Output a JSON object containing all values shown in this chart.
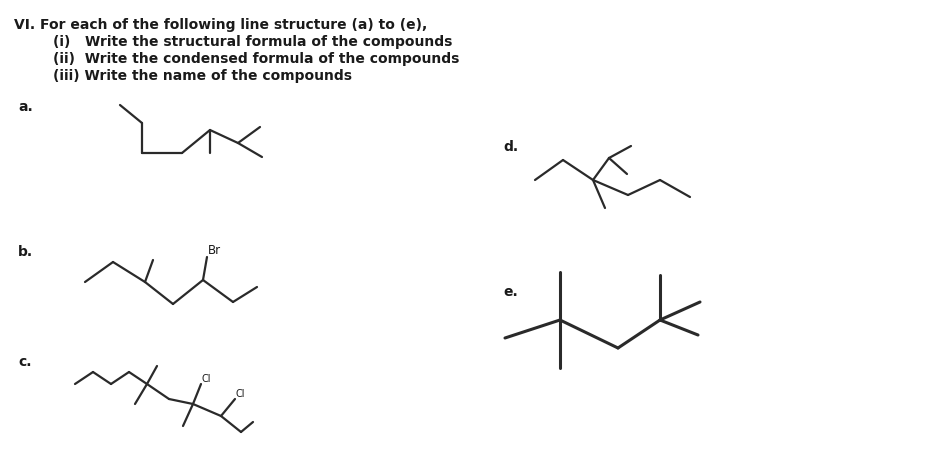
{
  "title_text": "VI. For each of the following line structure (a) to (e),",
  "line1": "        (i)   Write the structural formula of the compounds",
  "line2": "        (ii)  Write the condensed formula of the compounds",
  "line3": "        (iii) Write the name of the compounds",
  "bg_color": "#ffffff",
  "line_color": "#2a2a2a",
  "text_color": "#1a1a1a"
}
